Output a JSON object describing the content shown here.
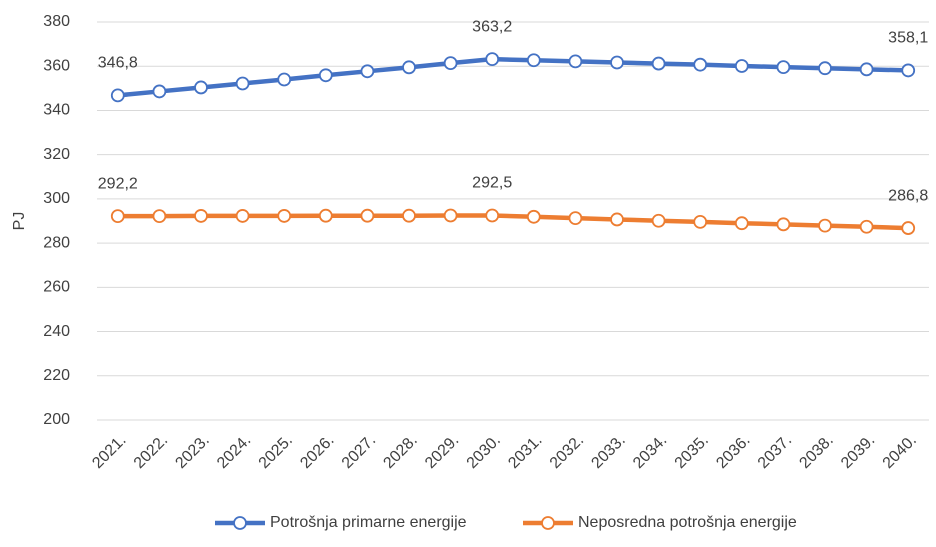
{
  "chart_data": {
    "type": "line",
    "y_label": "PJ",
    "categories": [
      "2021.",
      "2022.",
      "2023.",
      "2024.",
      "2025.",
      "2026.",
      "2027.",
      "2028.",
      "2029.",
      "2030.",
      "2031.",
      "2032.",
      "2033.",
      "2034.",
      "2035.",
      "2036.",
      "2037.",
      "2038.",
      "2039.",
      "2040."
    ],
    "series": [
      {
        "name": "Potrošnja primarne energije",
        "color": "#4472c4",
        "values": [
          346.8,
          348.6,
          350.4,
          352.2,
          354.0,
          355.9,
          357.7,
          359.5,
          361.4,
          363.2,
          362.7,
          362.2,
          361.7,
          361.2,
          360.7,
          360.1,
          359.6,
          359.1,
          358.6,
          358.1
        ],
        "value_labels": [
          "346,8",
          null,
          null,
          null,
          null,
          null,
          null,
          null,
          null,
          "363,2",
          null,
          null,
          null,
          null,
          null,
          null,
          null,
          null,
          null,
          "358,1"
        ]
      },
      {
        "name": "Neposredna potrošnja energije",
        "color": "#ed7d31",
        "values": [
          292.2,
          292.2,
          292.3,
          292.3,
          292.3,
          292.4,
          292.4,
          292.4,
          292.5,
          292.5,
          291.9,
          291.3,
          290.7,
          290.1,
          289.6,
          289.0,
          288.5,
          287.9,
          287.4,
          286.8
        ],
        "value_labels": [
          "292,2",
          null,
          null,
          null,
          null,
          null,
          null,
          null,
          null,
          "292,5",
          null,
          null,
          null,
          null,
          null,
          null,
          null,
          null,
          null,
          "286,8"
        ]
      }
    ],
    "ylim": [
      200,
      380
    ],
    "yticks": [
      200,
      220,
      240,
      260,
      280,
      300,
      320,
      340,
      360,
      380
    ],
    "grid": true,
    "legend": "bottom"
  }
}
